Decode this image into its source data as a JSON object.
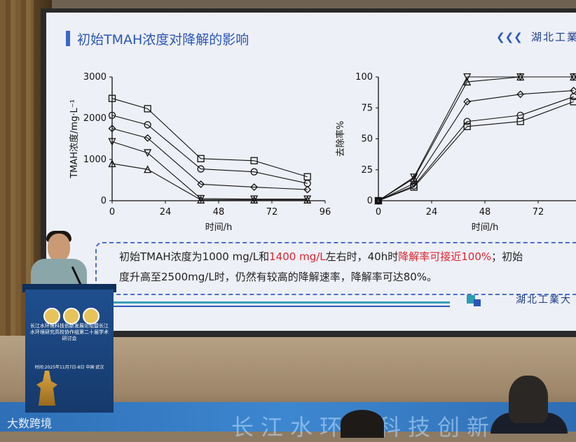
{
  "slide": {
    "title": "初始TMAH浓度对降解的影响",
    "logo_text": "湖北工業",
    "logo_text_bottom": "湖北工業大",
    "chevrons": "❮❮❮"
  },
  "chart_data": [
    {
      "type": "line",
      "xlabel": "时间/h",
      "ylabel": "TMAH浓度/mg·L⁻¹",
      "xlim": [
        0,
        96
      ],
      "ylim": [
        0,
        3000
      ],
      "xticks": [
        "0",
        "24",
        "48",
        "72",
        "96"
      ],
      "yticks": [
        "0",
        "1000",
        "2000",
        "3000"
      ],
      "series": [
        {
          "marker": "square",
          "x": [
            0,
            16,
            40,
            64,
            88
          ],
          "y": [
            2480,
            2230,
            1020,
            970,
            580
          ]
        },
        {
          "marker": "circle",
          "x": [
            0,
            16,
            40,
            64,
            88
          ],
          "y": [
            2070,
            1840,
            770,
            700,
            420
          ]
        },
        {
          "marker": "diamond",
          "x": [
            0,
            16,
            40,
            64,
            88
          ],
          "y": [
            1750,
            1520,
            400,
            330,
            270
          ]
        },
        {
          "marker": "triangle-down",
          "x": [
            0,
            16,
            40,
            64,
            88
          ],
          "y": [
            1430,
            1160,
            50,
            40,
            40
          ]
        },
        {
          "marker": "triangle-up",
          "x": [
            0,
            16,
            40,
            64,
            88
          ],
          "y": [
            900,
            760,
            20,
            20,
            20
          ]
        }
      ]
    },
    {
      "type": "line",
      "xlabel": "时间/h",
      "ylabel": "去除率%",
      "xlim": [
        0,
        96
      ],
      "ylim": [
        0,
        100
      ],
      "xticks": [
        "0",
        "24",
        "48",
        "72"
      ],
      "yticks": [
        "0",
        "25",
        "50",
        "75",
        "100"
      ],
      "series": [
        {
          "marker": "square",
          "x": [
            0,
            16,
            40,
            64,
            88
          ],
          "y": [
            0,
            11,
            60,
            64,
            80
          ]
        },
        {
          "marker": "circle",
          "x": [
            0,
            16,
            40,
            64,
            88
          ],
          "y": [
            0,
            12,
            64,
            69,
            84
          ]
        },
        {
          "marker": "diamond",
          "x": [
            0,
            16,
            40,
            64,
            88
          ],
          "y": [
            0,
            14,
            80,
            86,
            89
          ]
        },
        {
          "marker": "triangle-down",
          "x": [
            0,
            16,
            40,
            64,
            88
          ],
          "y": [
            0,
            19,
            100,
            100,
            100
          ]
        },
        {
          "marker": "triangle-up",
          "x": [
            0,
            16,
            40,
            64,
            88
          ],
          "y": [
            0,
            18,
            96,
            100,
            100
          ]
        }
      ]
    }
  ],
  "conclusion": {
    "line1_a": "初始TMAH浓度为1000 mg/L和",
    "line1_b": "1400 mg/L",
    "line1_c": "左右时，40h时",
    "line1_d": "降解率可接近100%",
    "line1_e": "；初始",
    "line2": "度升高至2500mg/L时，仍然有较高的降解速率，降解率可达80%。"
  },
  "podium": {
    "text": "长江水环境科技创新发展论坛暨长江水环境研究高校协作组第二十届学术研讨会",
    "date": "时间:2025年11月7日-8日  中国·武汉"
  },
  "background_text": "长江水环境科技创新",
  "watermark": "大数跨境",
  "colors": {
    "title": "#2a56b8",
    "highlight": "#e0242e",
    "screen_bg": "#eef0f7"
  }
}
